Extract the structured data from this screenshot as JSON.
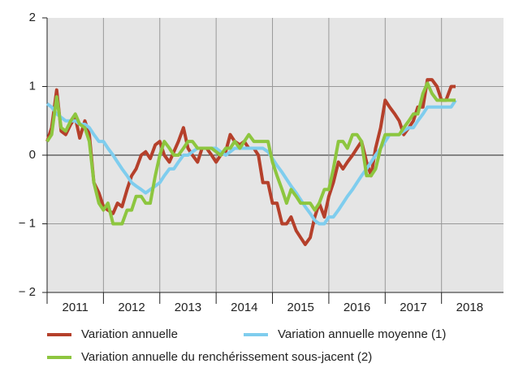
{
  "chart_data": {
    "type": "line",
    "x": [
      2011.0,
      2011.08,
      2011.17,
      2011.25,
      2011.33,
      2011.42,
      2011.5,
      2011.58,
      2011.67,
      2011.75,
      2011.83,
      2011.92,
      2012.0,
      2012.08,
      2012.17,
      2012.25,
      2012.33,
      2012.42,
      2012.5,
      2012.58,
      2012.67,
      2012.75,
      2012.83,
      2012.92,
      2013.0,
      2013.08,
      2013.17,
      2013.25,
      2013.33,
      2013.42,
      2013.5,
      2013.58,
      2013.67,
      2013.75,
      2013.83,
      2013.92,
      2014.0,
      2014.08,
      2014.17,
      2014.25,
      2014.33,
      2014.42,
      2014.5,
      2014.58,
      2014.67,
      2014.75,
      2014.83,
      2014.92,
      2015.0,
      2015.08,
      2015.17,
      2015.25,
      2015.33,
      2015.42,
      2015.5,
      2015.58,
      2015.67,
      2015.75,
      2015.83,
      2015.92,
      2016.0,
      2016.08,
      2016.17,
      2016.25,
      2016.33,
      2016.42,
      2016.5,
      2016.58,
      2016.67,
      2016.75,
      2016.83,
      2016.92,
      2017.0,
      2017.08,
      2017.17,
      2017.25,
      2017.33,
      2017.42,
      2017.5,
      2017.58,
      2017.67,
      2017.75,
      2017.83,
      2017.92,
      2018.0,
      2018.08,
      2018.17,
      2018.25
    ],
    "series": [
      {
        "name": "Variation annuelle",
        "color": "#b5402b",
        "values": [
          0.2,
          0.4,
          0.95,
          0.35,
          0.3,
          0.45,
          0.55,
          0.25,
          0.5,
          0.3,
          -0.4,
          -0.55,
          -0.75,
          -0.8,
          -0.85,
          -0.7,
          -0.75,
          -0.5,
          -0.3,
          -0.2,
          0,
          0.05,
          -0.05,
          0.15,
          0.2,
          0,
          -0.1,
          0.05,
          0.2,
          0.4,
          0.1,
          0,
          -0.1,
          0.1,
          0.1,
          0,
          -0.1,
          0,
          0.05,
          0.3,
          0.2,
          0.15,
          0.2,
          0.1,
          0.1,
          0,
          -0.4,
          -0.4,
          -0.7,
          -0.7,
          -1.0,
          -1.0,
          -0.9,
          -1.1,
          -1.2,
          -1.3,
          -1.2,
          -0.9,
          -0.7,
          -0.9,
          -0.6,
          -0.4,
          -0.1,
          -0.2,
          -0.1,
          0,
          0.1,
          0.2,
          -0.1,
          -0.3,
          0.1,
          0.4,
          0.8,
          0.7,
          0.6,
          0.5,
          0.3,
          0.4,
          0.5,
          0.7,
          0.7,
          1.1,
          1.1,
          1.0,
          0.8,
          0.8,
          1.0,
          1.0
        ]
      },
      {
        "name": "Variation annuelle moyenne (1)",
        "color": "#7fcdee",
        "values": [
          0.75,
          0.7,
          0.6,
          0.55,
          0.5,
          0.5,
          0.5,
          0.45,
          0.45,
          0.4,
          0.3,
          0.2,
          0.2,
          0.1,
          0,
          -0.1,
          -0.2,
          -0.3,
          -0.4,
          -0.45,
          -0.5,
          -0.55,
          -0.5,
          -0.45,
          -0.4,
          -0.3,
          -0.2,
          -0.2,
          -0.1,
          0,
          0,
          0.05,
          0.1,
          0.1,
          0.1,
          0.1,
          0.1,
          0.05,
          0,
          0.05,
          0.1,
          0.1,
          0.1,
          0.1,
          0.1,
          0.1,
          0.1,
          0.05,
          -0.05,
          -0.15,
          -0.25,
          -0.35,
          -0.45,
          -0.55,
          -0.65,
          -0.75,
          -0.85,
          -0.95,
          -1.0,
          -1.0,
          -0.9,
          -0.9,
          -0.8,
          -0.7,
          -0.6,
          -0.5,
          -0.4,
          -0.3,
          -0.2,
          -0.1,
          0,
          0.1,
          0.2,
          0.3,
          0.3,
          0.3,
          0.35,
          0.4,
          0.4,
          0.5,
          0.6,
          0.7,
          0.7,
          0.7,
          0.7,
          0.7,
          0.7,
          0.8
        ]
      },
      {
        "name": "Variation annuelle du renchérissement sous-jacent (2)",
        "color": "#8dc63f",
        "values": [
          0.2,
          0.3,
          0.85,
          0.4,
          0.35,
          0.5,
          0.6,
          0.45,
          0.4,
          0.2,
          -0.4,
          -0.7,
          -0.8,
          -0.7,
          -1.0,
          -1.0,
          -1.0,
          -0.8,
          -0.8,
          -0.6,
          -0.6,
          -0.7,
          -0.7,
          -0.3,
          0,
          0.2,
          0.1,
          0,
          0,
          0.1,
          0.2,
          0.2,
          0.1,
          0.1,
          0.1,
          0.1,
          0.05,
          0,
          0.1,
          0.1,
          0.2,
          0.1,
          0.2,
          0.3,
          0.2,
          0.2,
          0.2,
          0.2,
          -0.1,
          -0.3,
          -0.5,
          -0.7,
          -0.5,
          -0.6,
          -0.7,
          -0.7,
          -0.7,
          -0.8,
          -0.7,
          -0.5,
          -0.5,
          -0.2,
          0.2,
          0.2,
          0.1,
          0.3,
          0.3,
          0.2,
          -0.3,
          -0.3,
          -0.2,
          0.1,
          0.3,
          0.3,
          0.3,
          0.3,
          0.4,
          0.5,
          0.6,
          0.6,
          0.9,
          1.05,
          0.9,
          0.8,
          0.8,
          0.8,
          0.8,
          0.8
        ]
      }
    ],
    "xlim": [
      2011,
      2019.1
    ],
    "xticks": [
      {
        "value": 2011.5,
        "label": "2011"
      },
      {
        "value": 2012.5,
        "label": "2012"
      },
      {
        "value": 2013.5,
        "label": "2013"
      },
      {
        "value": 2014.5,
        "label": "2014"
      },
      {
        "value": 2015.5,
        "label": "2015"
      },
      {
        "value": 2016.5,
        "label": "2016"
      },
      {
        "value": 2017.5,
        "label": "2017"
      },
      {
        "value": 2018.5,
        "label": "2018"
      }
    ],
    "ylim": [
      -2,
      2
    ],
    "yticks": [
      {
        "value": -2,
        "label": "− 2"
      },
      {
        "value": -1,
        "label": "− 1"
      },
      0,
      1,
      2
    ],
    "grid": true
  }
}
